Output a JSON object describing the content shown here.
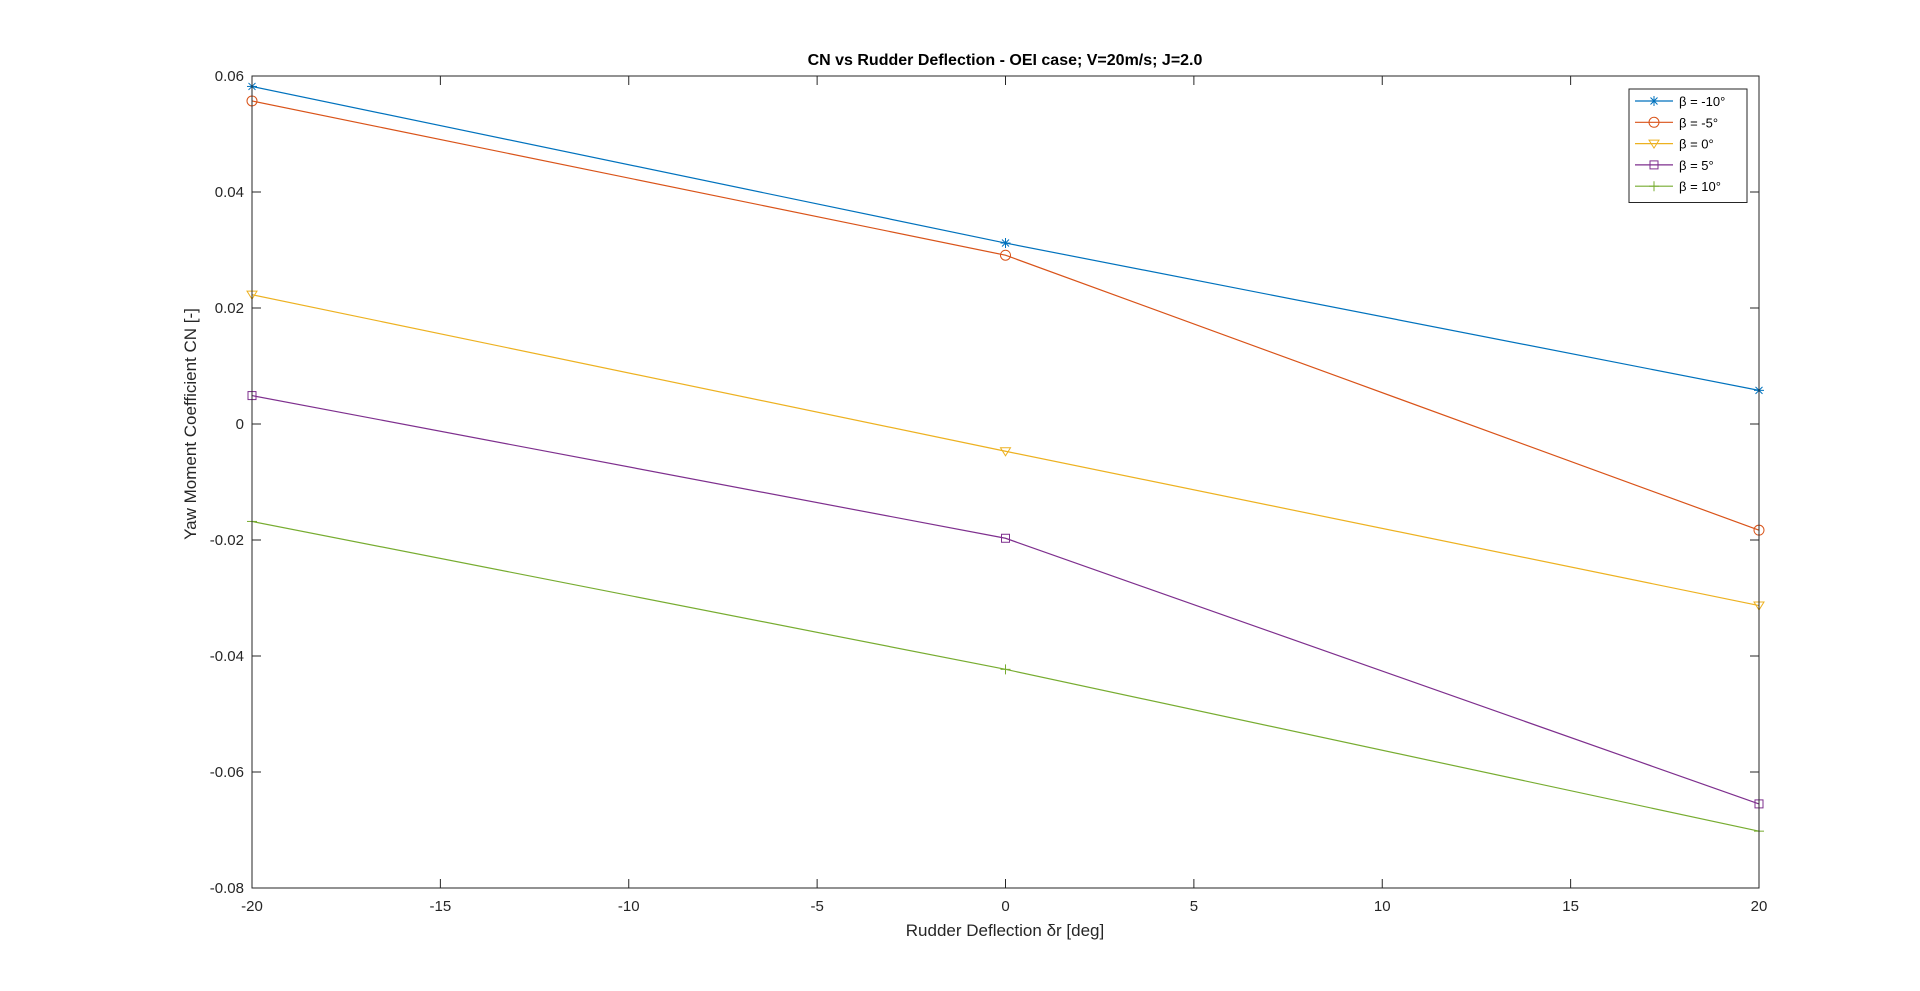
{
  "chart_data": {
    "type": "line",
    "title": "CN vs Rudder Deflection - OEI case; V=20m/s; J=2.0",
    "xlabel": "Rudder Deflection δr [deg]",
    "ylabel": "Yaw Moment Coefficient CN [-]",
    "xlim": [
      -20,
      20
    ],
    "ylim": [
      -0.08,
      0.06
    ],
    "xticks": [
      -20,
      -15,
      -10,
      -5,
      0,
      5,
      10,
      15,
      20
    ],
    "xtick_labels": [
      "-20",
      "-15",
      "-10",
      "-5",
      "0",
      "5",
      "10",
      "15",
      "20"
    ],
    "yticks": [
      0.06,
      0.04,
      0.02,
      0,
      -0.02,
      -0.04,
      -0.06,
      -0.08
    ],
    "ytick_labels": [
      "0.06",
      "0.04",
      "0.02",
      "0",
      "-0.02",
      "-0.04",
      "-0.06",
      "-0.08"
    ],
    "grid": false,
    "legend_position": "top-right",
    "x": [
      -20,
      0,
      20
    ],
    "series": [
      {
        "name": "β = -10°",
        "values": [
          0.0582,
          0.0312,
          0.0058
        ],
        "color": "#0072BD",
        "marker": "asterisk"
      },
      {
        "name": "β = -5°",
        "values": [
          0.0557,
          0.0291,
          -0.0183
        ],
        "color": "#D95319",
        "marker": "circle"
      },
      {
        "name": "β = 0°",
        "values": [
          0.0223,
          -0.0047,
          -0.0313
        ],
        "color": "#EDB120",
        "marker": "triangle-down"
      },
      {
        "name": "β = 5°",
        "values": [
          0.0049,
          -0.0197,
          -0.0655
        ],
        "color": "#7E2F8E",
        "marker": "square"
      },
      {
        "name": "β = 10°",
        "values": [
          -0.0168,
          -0.0423,
          -0.0702
        ],
        "color": "#77AC30",
        "marker": "plus"
      }
    ]
  }
}
